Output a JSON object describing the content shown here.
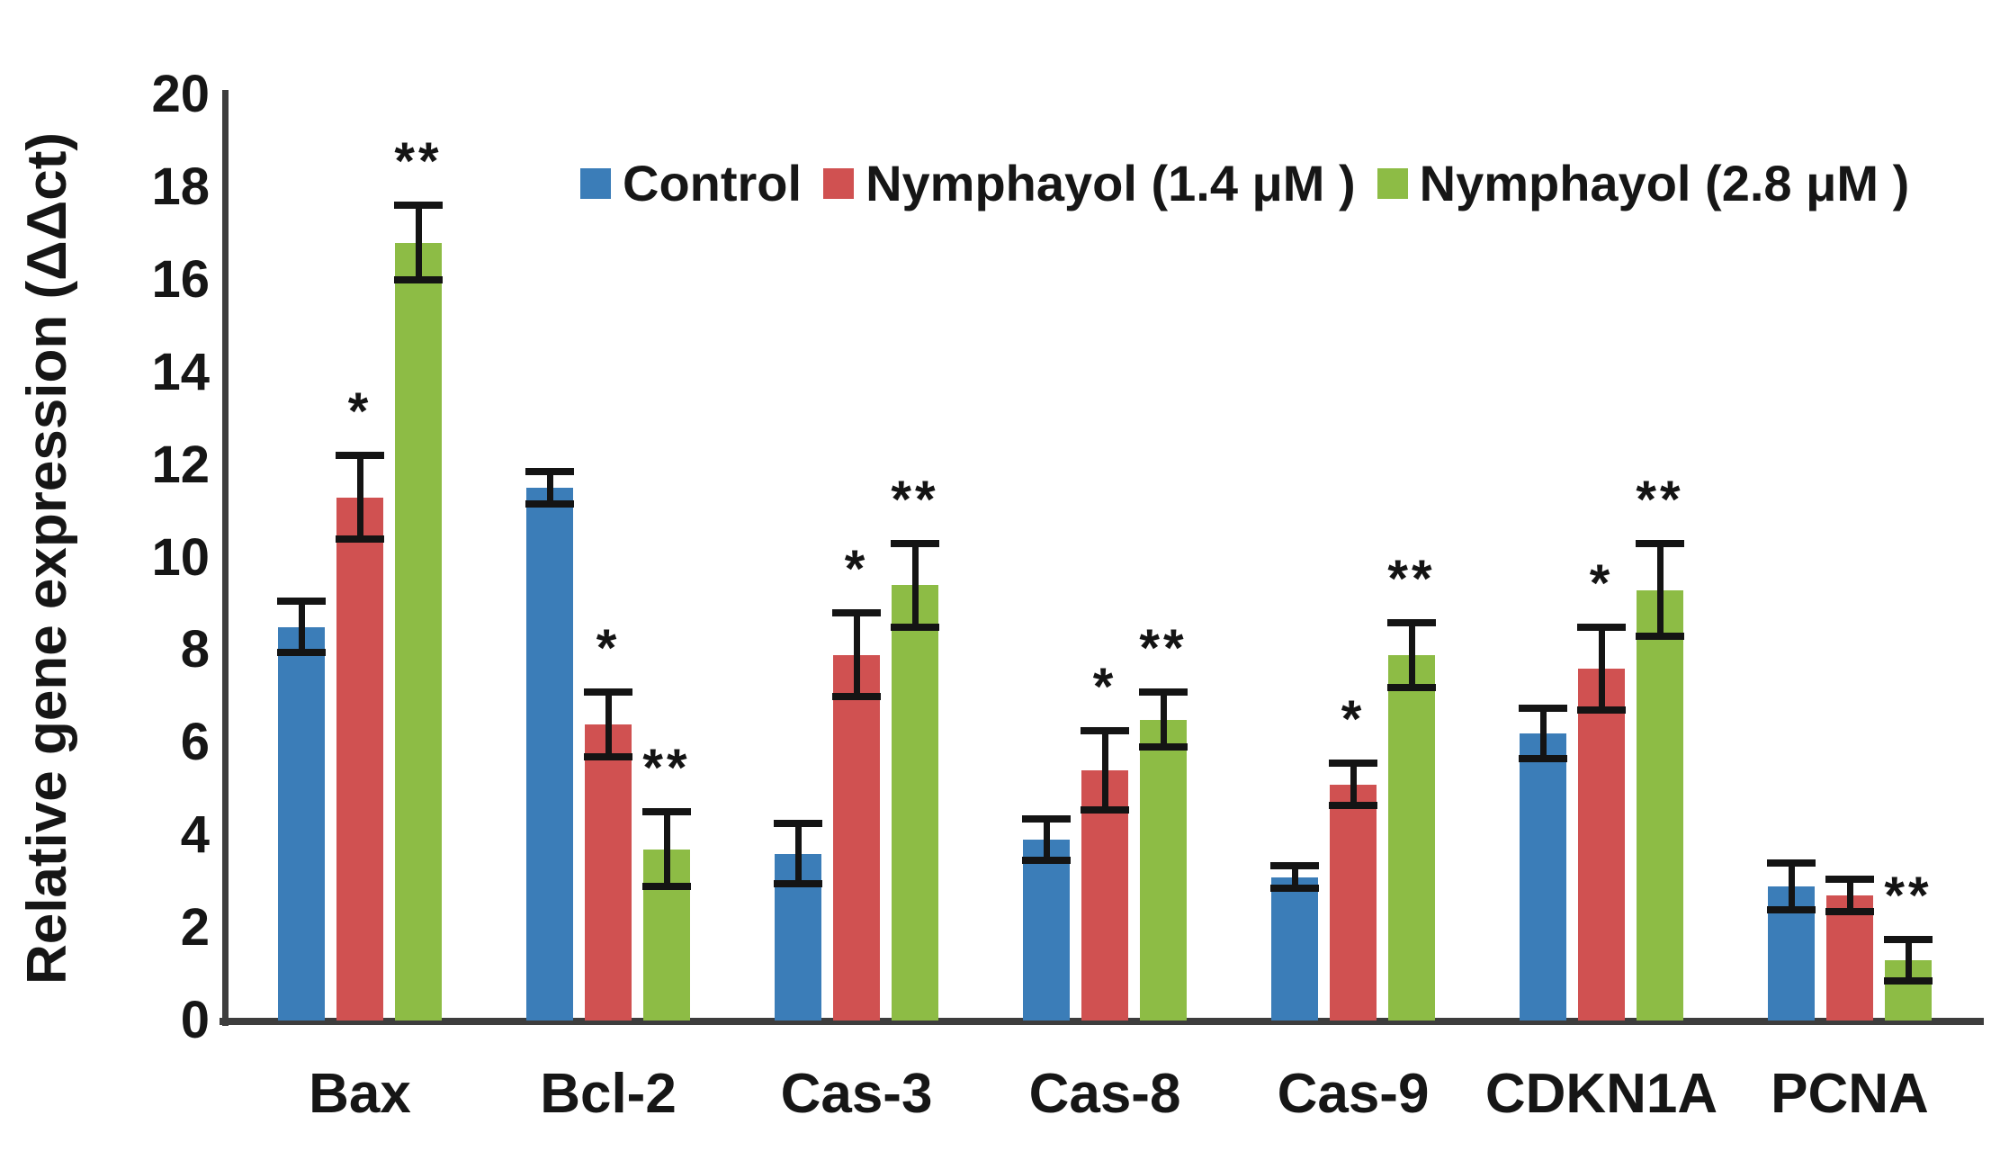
{
  "chart_data": {
    "type": "bar",
    "title": "",
    "ylabel": "Relative gene expression (ΔΔct)",
    "xlabel": "",
    "ylim": [
      0,
      20
    ],
    "y_ticks": [
      0,
      2,
      4,
      6,
      8,
      10,
      12,
      14,
      16,
      18,
      20
    ],
    "grid": false,
    "legend_position": "top-center",
    "error_bars": true,
    "categories": [
      "Bax",
      "Bcl-2",
      "Cas-3",
      "Cas-8",
      "Cas-9",
      "CDKN1A",
      "PCNA"
    ],
    "series": [
      {
        "name": "Control",
        "color": "#3b7db8",
        "values": [
          8.5,
          11.5,
          3.6,
          3.9,
          3.1,
          6.2,
          2.9
        ],
        "errors": [
          0.55,
          0.35,
          0.65,
          0.45,
          0.25,
          0.55,
          0.5
        ],
        "significance": [
          "",
          "",
          "",
          "",
          "",
          "",
          ""
        ]
      },
      {
        "name": "Nymphayol (1.4 μM )",
        "color": "#d05151",
        "values": [
          11.3,
          6.4,
          7.9,
          5.4,
          5.1,
          7.6,
          2.7
        ],
        "errors": [
          0.9,
          0.7,
          0.9,
          0.85,
          0.45,
          0.9,
          0.35
        ],
        "significance": [
          "*",
          "*",
          "*",
          "*",
          "*",
          "*",
          ""
        ]
      },
      {
        "name": "Nymphayol (2.8 μM )",
        "color": "#8dbc45",
        "values": [
          16.8,
          3.7,
          9.4,
          6.5,
          7.9,
          9.3,
          1.3
        ],
        "errors": [
          0.8,
          0.8,
          0.9,
          0.6,
          0.7,
          1.0,
          0.45
        ],
        "significance": [
          "**",
          "**",
          "**",
          "**",
          "**",
          "**",
          "**"
        ]
      }
    ]
  }
}
